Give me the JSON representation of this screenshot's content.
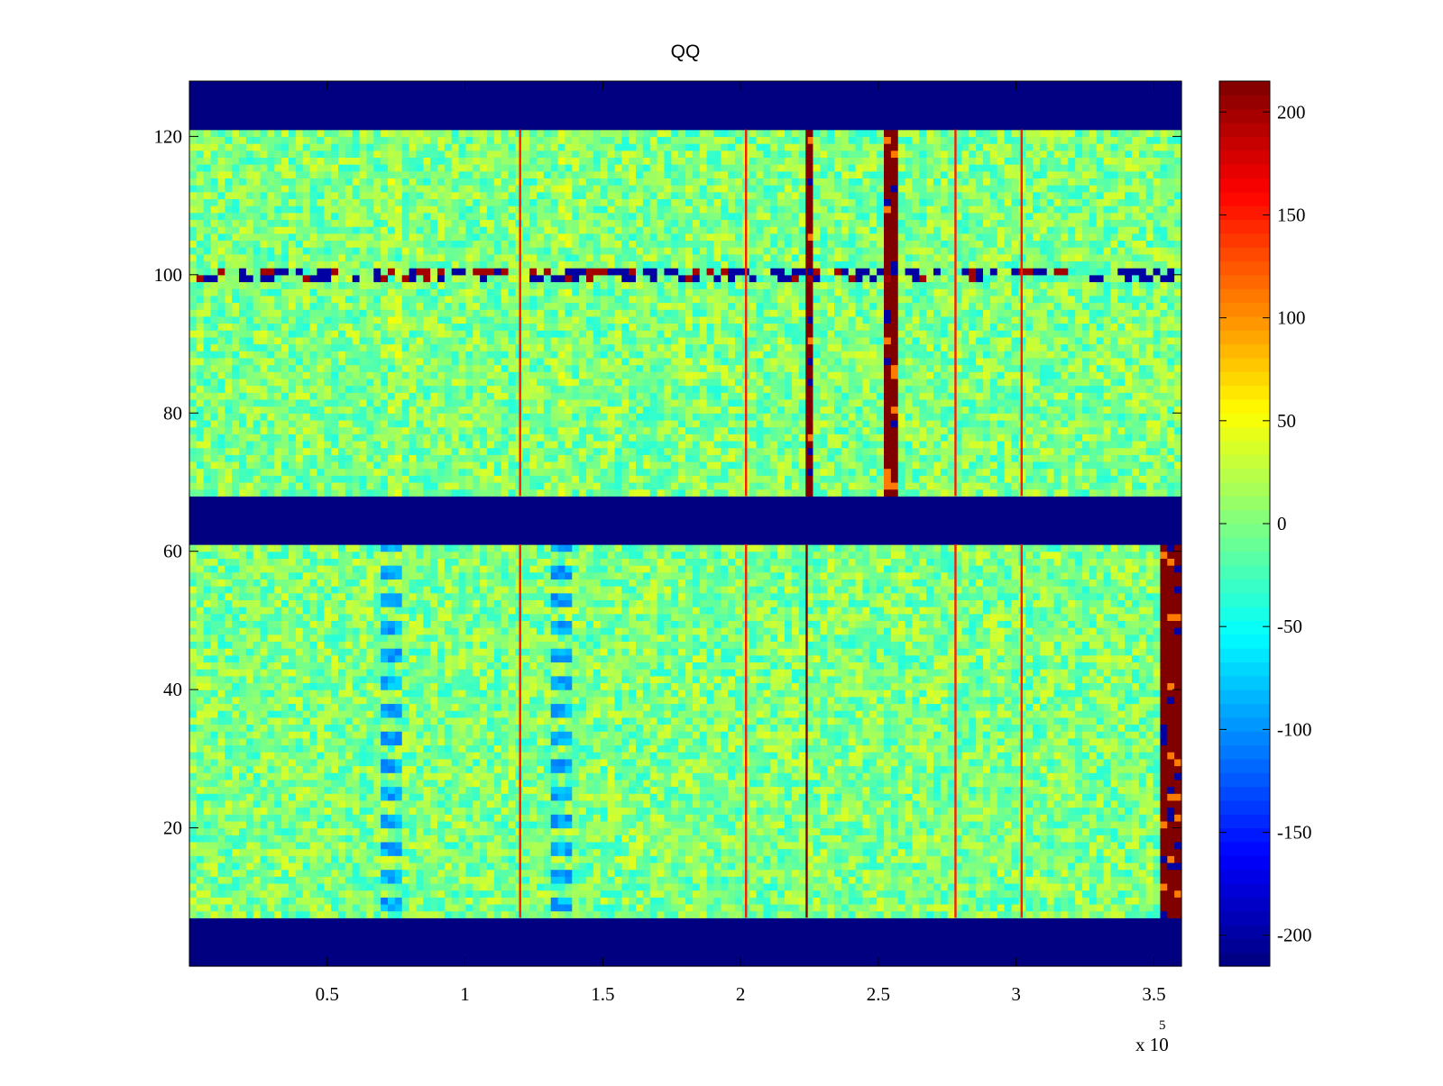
{
  "chart_data": {
    "type": "heatmap",
    "title": "QQ",
    "xlabel": "",
    "ylabel": "",
    "x_exponent_label": "x 10",
    "x_exponent_power": "5",
    "xlim": [
      0,
      360000
    ],
    "ylim": [
      0,
      128
    ],
    "x_ticks": [
      {
        "value": 50000,
        "label": "0.5"
      },
      {
        "value": 100000,
        "label": "1"
      },
      {
        "value": 150000,
        "label": "1.5"
      },
      {
        "value": 200000,
        "label": "2"
      },
      {
        "value": 250000,
        "label": "2.5"
      },
      {
        "value": 300000,
        "label": "3"
      },
      {
        "value": 350000,
        "label": "3.5"
      }
    ],
    "y_ticks": [
      {
        "value": 20,
        "label": "20"
      },
      {
        "value": 40,
        "label": "40"
      },
      {
        "value": 60,
        "label": "60"
      },
      {
        "value": 80,
        "label": "80"
      },
      {
        "value": 100,
        "label": "100"
      },
      {
        "value": 120,
        "label": "120"
      }
    ],
    "colorbar": {
      "colormap": "jet",
      "clim": [
        -215,
        215
      ],
      "ticks": [
        {
          "value": 200,
          "label": "200"
        },
        {
          "value": 150,
          "label": "150"
        },
        {
          "value": 100,
          "label": "100"
        },
        {
          "value": 50,
          "label": "50"
        },
        {
          "value": 0,
          "label": "0"
        },
        {
          "value": -50,
          "label": "-50"
        },
        {
          "value": -100,
          "label": "-100"
        },
        {
          "value": -150,
          "label": "-150"
        },
        {
          "value": -200,
          "label": "-200"
        }
      ]
    },
    "background_value": 0,
    "noise_amplitude": 40,
    "masked_value": -215,
    "masked_row_bands": [
      [
        0,
        7
      ],
      [
        61,
        68
      ],
      [
        121,
        128
      ]
    ],
    "vertical_lines": [
      {
        "x": 120000,
        "value": 150
      },
      {
        "x": 202000,
        "value": 150
      },
      {
        "x": 224000,
        "value": 215
      },
      {
        "x": 278000,
        "value": 150
      },
      {
        "x": 302000,
        "value": 150
      }
    ],
    "broad_column_features": [
      {
        "x_start": 70000,
        "x_end": 78000,
        "y_start": 7,
        "y_end": 61,
        "value": -90
      },
      {
        "x_start": 131000,
        "x_end": 140000,
        "y_start": 7,
        "y_end": 61,
        "value": -90
      },
      {
        "x_start": 72000,
        "x_end": 78000,
        "y_start": 68,
        "y_end": 121,
        "value": 30
      },
      {
        "x_start": 135000,
        "x_end": 140000,
        "y_start": 68,
        "y_end": 121,
        "value": 30
      }
    ],
    "strong_columns": [
      {
        "x_start": 223000,
        "x_end": 225000,
        "y_start": 68,
        "y_end": 121,
        "value": 215
      },
      {
        "x_start": 253000,
        "x_end": 258000,
        "y_start": 68,
        "y_end": 121,
        "value": 215
      },
      {
        "x_start": 353000,
        "x_end": 360000,
        "y_start": 7,
        "y_end": 61,
        "value": 215
      }
    ],
    "interference_row": {
      "y": 100,
      "value": -200
    }
  }
}
